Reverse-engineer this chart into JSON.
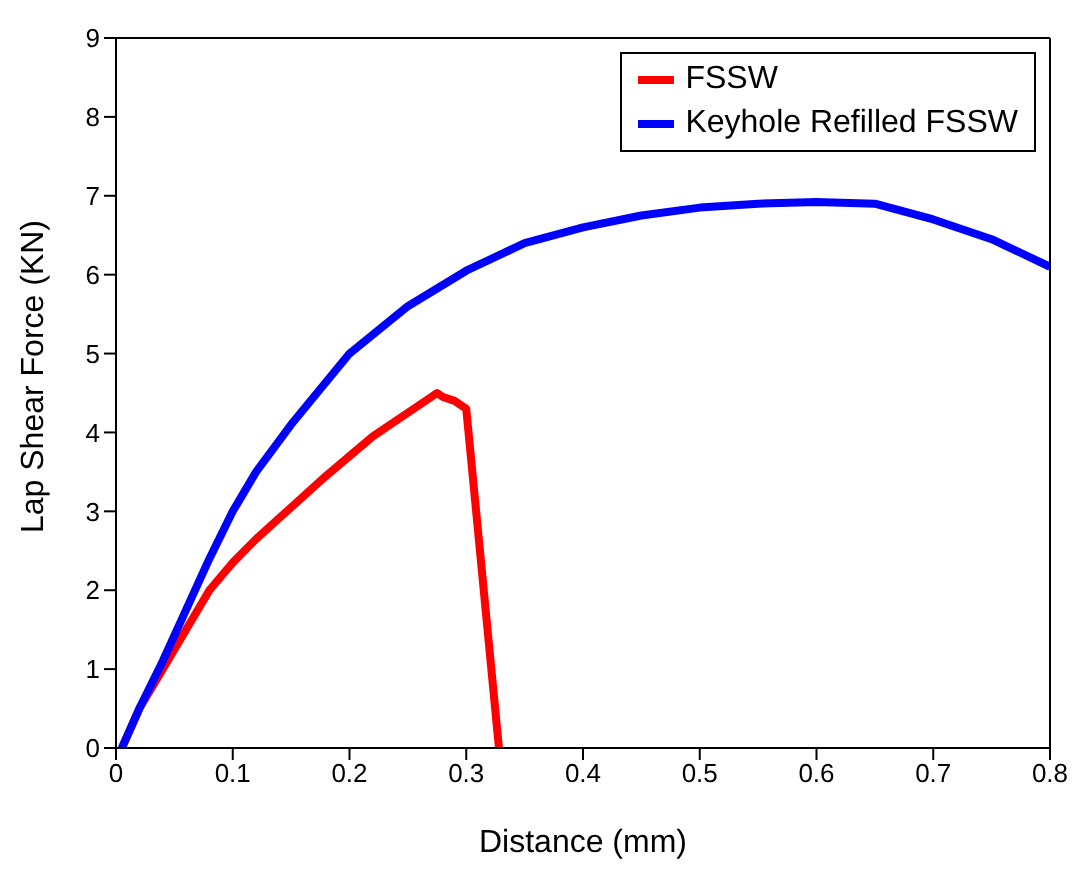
{
  "chart_data": {
    "type": "line",
    "xlabel": "Distance (mm)",
    "ylabel": "Lap Shear Force (KN)",
    "xlim": [
      0,
      0.8
    ],
    "xticks": [
      0,
      0.1,
      0.2,
      0.3,
      0.4,
      0.5,
      0.6,
      0.7,
      0.8
    ],
    "ylim": [
      0,
      9
    ],
    "yticks": [
      0,
      1,
      2,
      3,
      4,
      5,
      6,
      7,
      8,
      9
    ],
    "grid": false,
    "legend": "top right",
    "marker": "none",
    "line_style": "solid",
    "series": [
      {
        "name": "FSSW",
        "color": "#ff0000",
        "x": [
          0.005,
          0.02,
          0.04,
          0.06,
          0.08,
          0.1,
          0.12,
          0.15,
          0.18,
          0.2,
          0.22,
          0.25,
          0.27,
          0.275,
          0.28,
          0.29,
          0.3,
          0.328
        ],
        "values": [
          0,
          0.5,
          1.0,
          1.5,
          2.0,
          2.35,
          2.65,
          3.05,
          3.45,
          3.7,
          3.95,
          4.25,
          4.45,
          4.5,
          4.45,
          4.4,
          4.3,
          0
        ]
      },
      {
        "name": "Keyhole Refilled FSSW",
        "color": "#0000ff",
        "x": [
          0.005,
          0.02,
          0.04,
          0.06,
          0.08,
          0.1,
          0.12,
          0.15,
          0.2,
          0.25,
          0.3,
          0.35,
          0.4,
          0.45,
          0.5,
          0.55,
          0.6,
          0.65,
          0.7,
          0.75,
          0.8
        ],
        "values": [
          0,
          0.5,
          1.1,
          1.75,
          2.4,
          3.0,
          3.5,
          4.1,
          5.0,
          5.6,
          6.05,
          6.4,
          6.6,
          6.75,
          6.85,
          6.9,
          6.92,
          6.9,
          6.7,
          6.45,
          6.1
        ]
      }
    ]
  }
}
